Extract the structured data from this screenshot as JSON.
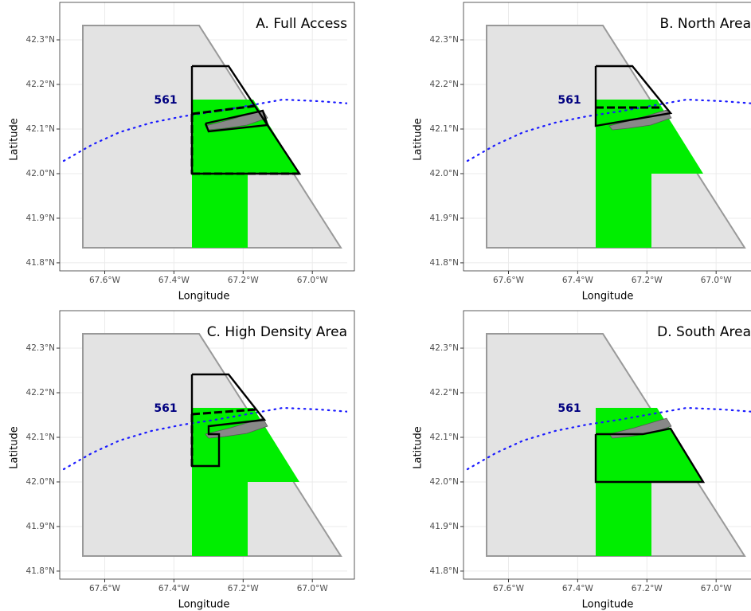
{
  "panels": [
    {
      "title": "A. Full Access"
    },
    {
      "title": "B. North Area"
    },
    {
      "title": "C. High Density Area"
    },
    {
      "title": "D. South Area"
    }
  ],
  "area_label": "561",
  "axes": {
    "xlabel": "Longitude",
    "ylabel": "Latitude",
    "xlim": [
      -67.73,
      -66.89
    ],
    "ylim": [
      41.782,
      42.384
    ],
    "xticks": [
      {
        "value": -67.6,
        "label": "67.6°W"
      },
      {
        "value": -67.4,
        "label": "67.4°W"
      },
      {
        "value": -67.2,
        "label": "67.2°W"
      },
      {
        "value": -67.0,
        "label": "67.0°W"
      }
    ],
    "yticks": [
      {
        "value": 41.8,
        "label": "41.8°N"
      },
      {
        "value": 41.9,
        "label": "41.9°N"
      },
      {
        "value": 42.0,
        "label": "42.0°N"
      },
      {
        "value": 42.1,
        "label": "42.1°N"
      },
      {
        "value": 42.2,
        "label": "42.2°N"
      },
      {
        "value": 42.3,
        "label": "42.3°N"
      }
    ]
  }
}
